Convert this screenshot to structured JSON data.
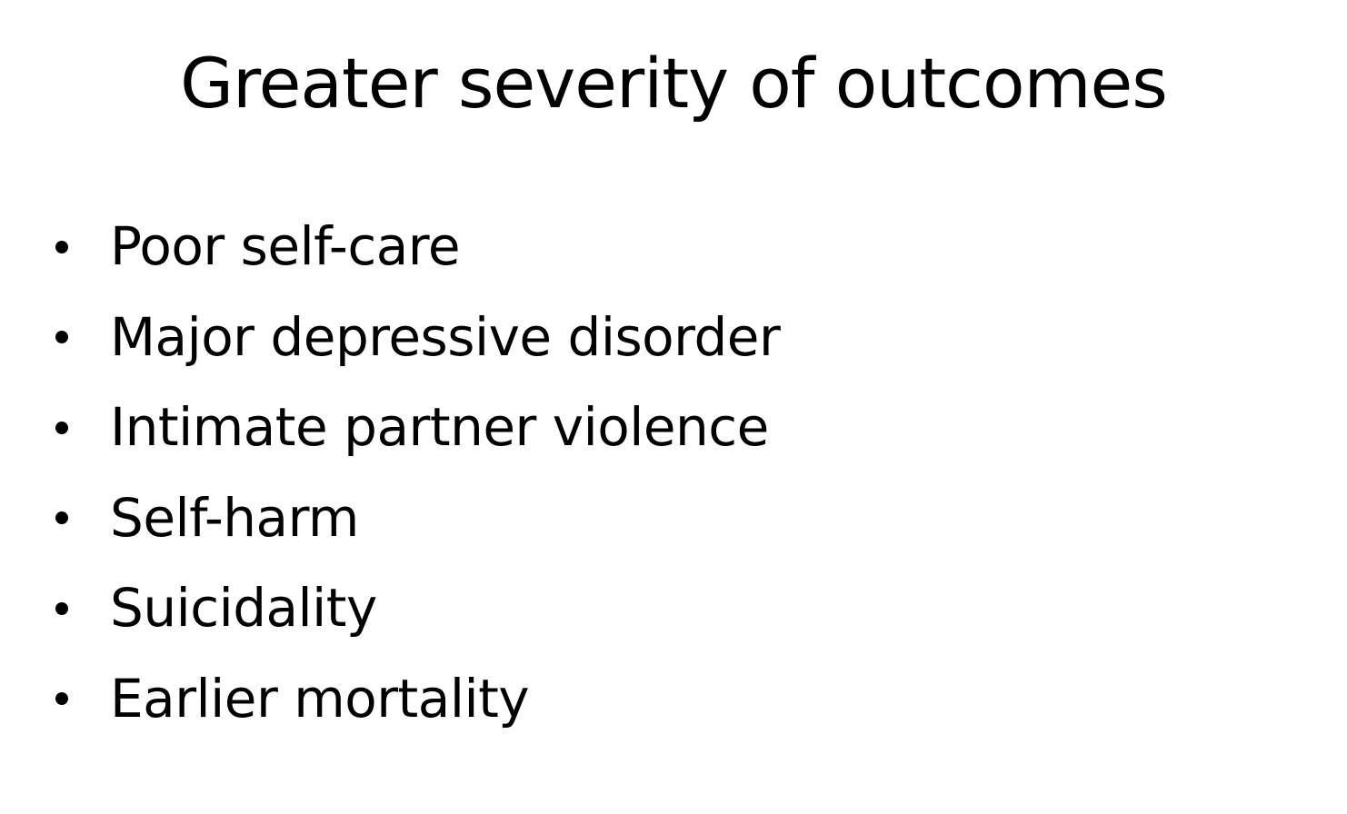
{
  "slide": {
    "title": "Greater severity of outcomes",
    "bullets": [
      "Poor self-care",
      "Major depressive disorder",
      "Intimate partner violence",
      "Self-harm",
      "Suicidality",
      "Earlier mortality"
    ]
  },
  "colors": {
    "background": "#ffffff",
    "text": "#000000"
  },
  "icons": {
    "bullet": "bullet-dot-icon"
  }
}
